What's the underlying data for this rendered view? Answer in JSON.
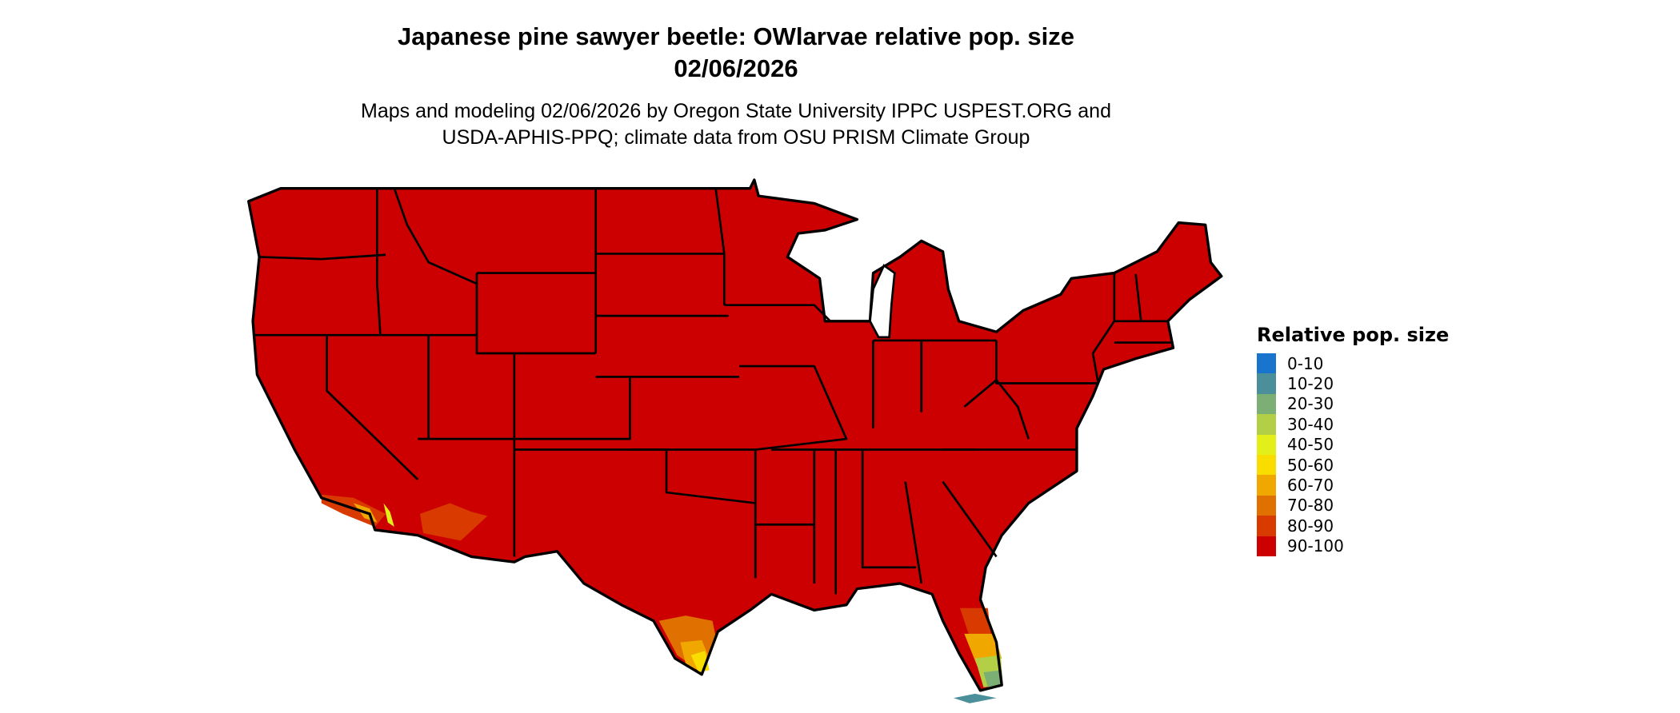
{
  "title": {
    "line1": "Japanese pine sawyer beetle: OWlarvae relative pop. size",
    "line2": "02/06/2026"
  },
  "subtitle": {
    "line1": "Maps and modeling 02/06/2026 by Oregon State University IPPC USPEST.ORG and",
    "line2": "USDA-APHIS-PPQ; climate data from OSU PRISM Climate Group"
  },
  "map": {
    "region": "Continental United States",
    "dominant_class": "90-100",
    "border_color": "#000000"
  },
  "legend": {
    "title": "Relative pop. size",
    "items": [
      {
        "label": "0-10",
        "color": "#1874cd"
      },
      {
        "label": "10-20",
        "color": "#4a8f9a"
      },
      {
        "label": "20-30",
        "color": "#7caf74"
      },
      {
        "label": "30-40",
        "color": "#b3cf45"
      },
      {
        "label": "40-50",
        "color": "#e3ef18"
      },
      {
        "label": "50-60",
        "color": "#fadd00"
      },
      {
        "label": "60-70",
        "color": "#f0a800"
      },
      {
        "label": "70-80",
        "color": "#e07000"
      },
      {
        "label": "80-90",
        "color": "#d83a00"
      },
      {
        "label": "90-100",
        "color": "#cc0000"
      }
    ]
  }
}
